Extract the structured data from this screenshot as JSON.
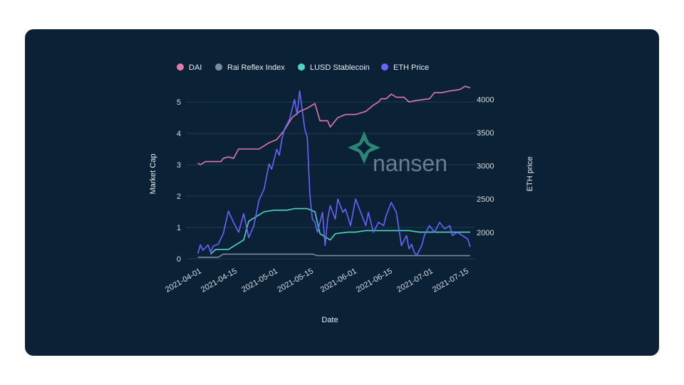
{
  "watermark": {
    "text": "nansen"
  },
  "chart_data": {
    "type": "line",
    "xlabel": "Date",
    "ylabel": "Market Cap",
    "y2label": "ETH price",
    "xlim": [
      "2021-03-28",
      "2021-07-18"
    ],
    "ylim": [
      0,
      5.5
    ],
    "y2lim": [
      1600,
      4200
    ],
    "x_ticks": [
      "2021-04-01",
      "2021-04-15",
      "2021-05-01",
      "2021-05-15",
      "2021-06-01",
      "2021-06-15",
      "2021-07-01",
      "2021-07-15"
    ],
    "y_ticks": [
      0,
      1,
      2,
      3,
      4,
      5
    ],
    "y2_ticks": [
      2000,
      2500,
      3000,
      3500,
      4000
    ],
    "legend_position": "top",
    "grid": "horizontal",
    "series": [
      {
        "name": "DAI",
        "axis": "left",
        "color": "#e07aa8",
        "points": [
          [
            "2021-03-31",
            3.05
          ],
          [
            "2021-04-01",
            3.0
          ],
          [
            "2021-04-03",
            3.1
          ],
          [
            "2021-04-09",
            3.1
          ],
          [
            "2021-04-10",
            3.2
          ],
          [
            "2021-04-12",
            3.25
          ],
          [
            "2021-04-14",
            3.2
          ],
          [
            "2021-04-16",
            3.5
          ],
          [
            "2021-04-24",
            3.5
          ],
          [
            "2021-04-28",
            3.7
          ],
          [
            "2021-05-01",
            3.8
          ],
          [
            "2021-05-04",
            4.1
          ],
          [
            "2021-05-07",
            4.5
          ],
          [
            "2021-05-10",
            4.7
          ],
          [
            "2021-05-13",
            4.8
          ],
          [
            "2021-05-16",
            4.95
          ],
          [
            "2021-05-18",
            4.4
          ],
          [
            "2021-05-21",
            4.4
          ],
          [
            "2021-05-22",
            4.2
          ],
          [
            "2021-05-25",
            4.5
          ],
          [
            "2021-05-28",
            4.6
          ],
          [
            "2021-06-01",
            4.6
          ],
          [
            "2021-06-03",
            4.65
          ],
          [
            "2021-06-05",
            4.7
          ],
          [
            "2021-06-08",
            4.9
          ],
          [
            "2021-06-10",
            5.0
          ],
          [
            "2021-06-11",
            5.1
          ],
          [
            "2021-06-13",
            5.1
          ],
          [
            "2021-06-15",
            5.25
          ],
          [
            "2021-06-17",
            5.15
          ],
          [
            "2021-06-20",
            5.15
          ],
          [
            "2021-06-22",
            5.0
          ],
          [
            "2021-06-25",
            5.05
          ],
          [
            "2021-06-30",
            5.1
          ],
          [
            "2021-07-02",
            5.3
          ],
          [
            "2021-07-05",
            5.3
          ],
          [
            "2021-07-08",
            5.35
          ],
          [
            "2021-07-12",
            5.4
          ],
          [
            "2021-07-14",
            5.5
          ],
          [
            "2021-07-16",
            5.45
          ]
        ]
      },
      {
        "name": "Rai Reflex Index",
        "axis": "left",
        "color": "#7b8ba3",
        "points": [
          [
            "2021-03-31",
            0.05
          ],
          [
            "2021-04-08",
            0.05
          ],
          [
            "2021-04-10",
            0.15
          ],
          [
            "2021-05-01",
            0.15
          ],
          [
            "2021-05-15",
            0.15
          ],
          [
            "2021-05-17",
            0.1
          ],
          [
            "2021-06-15",
            0.1
          ],
          [
            "2021-07-16",
            0.1
          ]
        ]
      },
      {
        "name": "LUSD Stablecoin",
        "axis": "left",
        "color": "#4fd6c0",
        "points": [
          [
            "2021-04-05",
            0.15
          ],
          [
            "2021-04-07",
            0.3
          ],
          [
            "2021-04-12",
            0.3
          ],
          [
            "2021-04-14",
            0.4
          ],
          [
            "2021-04-18",
            0.6
          ],
          [
            "2021-04-20",
            1.2
          ],
          [
            "2021-04-24",
            1.4
          ],
          [
            "2021-04-26",
            1.5
          ],
          [
            "2021-04-30",
            1.55
          ],
          [
            "2021-05-05",
            1.55
          ],
          [
            "2021-05-08",
            1.6
          ],
          [
            "2021-05-13",
            1.6
          ],
          [
            "2021-05-16",
            1.5
          ],
          [
            "2021-05-18",
            0.8
          ],
          [
            "2021-05-20",
            0.7
          ],
          [
            "2021-05-22",
            0.6
          ],
          [
            "2021-05-24",
            0.8
          ],
          [
            "2021-05-29",
            0.85
          ],
          [
            "2021-06-01",
            0.85
          ],
          [
            "2021-06-05",
            0.9
          ],
          [
            "2021-06-22",
            0.9
          ],
          [
            "2021-06-26",
            0.85
          ],
          [
            "2021-07-16",
            0.85
          ]
        ]
      },
      {
        "name": "ETH Price",
        "axis": "right",
        "color": "#6c63ff",
        "points": [
          [
            "2021-03-31",
            1680
          ],
          [
            "2021-04-01",
            1810
          ],
          [
            "2021-04-02",
            1730
          ],
          [
            "2021-04-04",
            1810
          ],
          [
            "2021-04-05",
            1700
          ],
          [
            "2021-04-06",
            1790
          ],
          [
            "2021-04-08",
            1820
          ],
          [
            "2021-04-10",
            1980
          ],
          [
            "2021-04-12",
            2320
          ],
          [
            "2021-04-14",
            2150
          ],
          [
            "2021-04-16",
            2000
          ],
          [
            "2021-04-18",
            2280
          ],
          [
            "2021-04-20",
            1920
          ],
          [
            "2021-04-22",
            2100
          ],
          [
            "2021-04-24",
            2480
          ],
          [
            "2021-04-26",
            2650
          ],
          [
            "2021-04-28",
            3030
          ],
          [
            "2021-04-29",
            2950
          ],
          [
            "2021-05-01",
            3250
          ],
          [
            "2021-05-02",
            3160
          ],
          [
            "2021-05-03",
            3400
          ],
          [
            "2021-05-04",
            3550
          ],
          [
            "2021-05-06",
            3700
          ],
          [
            "2021-05-08",
            4000
          ],
          [
            "2021-05-09",
            3770
          ],
          [
            "2021-05-10",
            4130
          ],
          [
            "2021-05-11",
            3850
          ],
          [
            "2021-05-12",
            3560
          ],
          [
            "2021-05-13",
            3430
          ],
          [
            "2021-05-14",
            2570
          ],
          [
            "2021-05-15",
            2200
          ],
          [
            "2021-05-16",
            2150
          ],
          [
            "2021-05-17",
            2000
          ],
          [
            "2021-05-18",
            2150
          ],
          [
            "2021-05-19",
            2300
          ],
          [
            "2021-05-20",
            1800
          ],
          [
            "2021-05-21",
            2200
          ],
          [
            "2021-05-22",
            2400
          ],
          [
            "2021-05-24",
            2200
          ],
          [
            "2021-05-25",
            2500
          ],
          [
            "2021-05-27",
            2300
          ],
          [
            "2021-05-28",
            2350
          ],
          [
            "2021-05-30",
            2100
          ],
          [
            "2021-06-01",
            2500
          ],
          [
            "2021-06-03",
            2300
          ],
          [
            "2021-06-05",
            2100
          ],
          [
            "2021-06-06",
            2300
          ],
          [
            "2021-06-08",
            2000
          ],
          [
            "2021-06-10",
            2150
          ],
          [
            "2021-06-12",
            2100
          ],
          [
            "2021-06-13",
            2250
          ],
          [
            "2021-06-15",
            2450
          ],
          [
            "2021-06-17",
            2300
          ],
          [
            "2021-06-19",
            1800
          ],
          [
            "2021-06-21",
            1950
          ],
          [
            "2021-06-22",
            1750
          ],
          [
            "2021-06-23",
            1820
          ],
          [
            "2021-06-24",
            1700
          ],
          [
            "2021-06-25",
            1650
          ],
          [
            "2021-06-27",
            1800
          ],
          [
            "2021-06-28",
            1950
          ],
          [
            "2021-06-30",
            2100
          ],
          [
            "2021-07-02",
            2000
          ],
          [
            "2021-07-04",
            2150
          ],
          [
            "2021-07-06",
            2050
          ],
          [
            "2021-07-08",
            2100
          ],
          [
            "2021-07-09",
            1950
          ],
          [
            "2021-07-11",
            2000
          ],
          [
            "2021-07-13",
            1950
          ],
          [
            "2021-07-15",
            1900
          ],
          [
            "2021-07-16",
            1780
          ]
        ]
      }
    ]
  }
}
